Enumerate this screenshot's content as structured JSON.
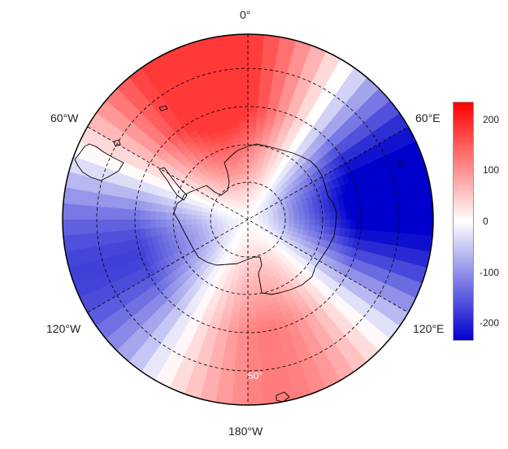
{
  "longitude_labels": {
    "top": "0°",
    "upper_left": "60°W",
    "upper_right": "60°E",
    "lower_left": "120°W",
    "lower_right": "120°E",
    "bottom": "180°W"
  },
  "latitude_label": "50°",
  "colorbar": {
    "ticks": [
      "200",
      "100",
      "0",
      "-100",
      "-200"
    ],
    "min": -235,
    "max": 235,
    "colors": {
      "max": "#ff0000",
      "zero": "#ffffff",
      "min": "#0000cc"
    }
  }
}
